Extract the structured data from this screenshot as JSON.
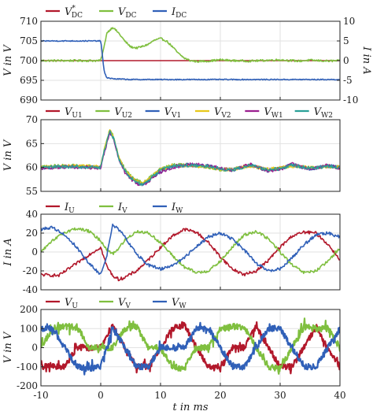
{
  "chart_data": [
    {
      "type": "line",
      "panel": "dc",
      "legend": [
        {
          "name": "V*DC",
          "label_main": "V",
          "label_sup": "*",
          "label_sub": "DC",
          "color": "#b2182b"
        },
        {
          "name": "VDC",
          "label_main": "V",
          "label_sup": "",
          "label_sub": "DC",
          "color": "#7fbf3f"
        },
        {
          "name": "IDC",
          "label_main": "I",
          "label_sup": "",
          "label_sub": "DC",
          "color": "#3060b8"
        }
      ],
      "ylabel": "V in V",
      "ylim": [
        690,
        710
      ],
      "yticks": [
        "690",
        "695",
        "700",
        "705",
        "710"
      ],
      "y2label": "I in A",
      "y2lim": [
        -10,
        10
      ],
      "y2ticks": [
        "-10",
        "-5",
        "0",
        "5",
        "10"
      ],
      "xlim": [
        -10,
        40
      ],
      "series": [
        {
          "name": "V*DC",
          "axis": "left",
          "x": [
            -10,
            40
          ],
          "values": [
            700,
            700
          ]
        },
        {
          "name": "VDC",
          "axis": "left",
          "x": [
            -10,
            0,
            0.5,
            1,
            2,
            3,
            4,
            5,
            6,
            7,
            8,
            9,
            10,
            11,
            12,
            13,
            14,
            15,
            16,
            18,
            20,
            22,
            25,
            28,
            30,
            33,
            35,
            38,
            40
          ],
          "values": [
            700,
            700,
            703,
            707,
            708.5,
            707,
            705,
            703.5,
            703.2,
            703.6,
            704.2,
            705.2,
            705.6,
            705.0,
            703.5,
            701.8,
            700.6,
            700.0,
            699.8,
            699.9,
            700.2,
            700.0,
            699.9,
            700.1,
            700.2,
            699.9,
            700.1,
            699.9,
            700.0
          ]
        },
        {
          "name": "IDC",
          "axis": "right",
          "x": [
            -10,
            0,
            0.1,
            0.3,
            0.6,
            1,
            2,
            5,
            40
          ],
          "values": [
            5,
            5,
            4,
            1,
            -3,
            -4.3,
            -4.6,
            -4.8,
            -4.8
          ]
        }
      ]
    },
    {
      "type": "line",
      "panel": "capacitor",
      "legend": [
        {
          "name": "VU1",
          "label_main": "V",
          "label_sub": "U1",
          "color": "#b2182b"
        },
        {
          "name": "VU2",
          "label_main": "V",
          "label_sub": "U2",
          "color": "#7fbf3f"
        },
        {
          "name": "VV1",
          "label_main": "V",
          "label_sub": "V1",
          "color": "#3060b8"
        },
        {
          "name": "VV2",
          "label_main": "V",
          "label_sub": "V2",
          "color": "#e8c81a"
        },
        {
          "name": "VW1",
          "label_main": "V",
          "label_sub": "W1",
          "color": "#9b1f8f"
        },
        {
          "name": "VW2",
          "label_main": "V",
          "label_sub": "W2",
          "color": "#2aa198"
        }
      ],
      "ylabel": "V in V",
      "ylim": [
        55,
        70
      ],
      "yticks": [
        "55",
        "60",
        "65",
        "70"
      ],
      "xlim": [
        -10,
        40
      ],
      "series": [
        {
          "name": "VU1",
          "x": [
            -10,
            -5,
            0,
            0.5,
            1.5,
            2.2,
            3,
            4,
            5,
            6,
            7,
            8,
            10,
            12,
            15,
            18,
            20,
            22,
            25,
            28,
            30,
            32,
            35,
            38,
            40
          ],
          "values": [
            60,
            60.3,
            60,
            63,
            67.8,
            66,
            62,
            59.5,
            58,
            57,
            56.6,
            57.5,
            59.5,
            60.3,
            60.5,
            60.2,
            59.7,
            59.5,
            60.6,
            59.4,
            59.8,
            60.5,
            59.8,
            60.3,
            60
          ]
        },
        {
          "name": "VU2",
          "x": [
            -10,
            -5,
            0,
            0.5,
            1.5,
            2.2,
            3,
            4,
            5,
            6,
            7,
            8,
            10,
            12,
            15,
            18,
            20,
            22,
            25,
            28,
            30,
            32,
            35,
            38,
            40
          ],
          "values": [
            60.2,
            60.4,
            60.1,
            63.2,
            68,
            66.3,
            62.2,
            59.8,
            58.3,
            57.3,
            56.8,
            57.8,
            59.7,
            60.5,
            60.6,
            60.0,
            59.5,
            59.6,
            60.4,
            59.5,
            59.9,
            60.4,
            59.9,
            60.2,
            60.1
          ]
        },
        {
          "name": "VV1",
          "x": [
            -10,
            -5,
            0,
            0.5,
            1.5,
            2.2,
            3,
            4,
            5,
            6,
            7,
            8,
            10,
            12,
            15,
            18,
            20,
            22,
            25,
            28,
            30,
            32,
            35,
            38,
            40
          ],
          "values": [
            59.9,
            60.2,
            60,
            62.8,
            67.5,
            65.8,
            61.8,
            59.3,
            57.8,
            56.8,
            56.5,
            57.3,
            59.2,
            60.2,
            60.6,
            60.3,
            59.8,
            59.4,
            60.5,
            59.3,
            59.7,
            60.6,
            59.7,
            60.4,
            59.9
          ]
        },
        {
          "name": "VV2",
          "x": [
            -10,
            -5,
            0,
            0.5,
            1.5,
            2.2,
            3,
            4,
            5,
            6,
            7,
            8,
            10,
            12,
            15,
            18,
            20,
            22,
            25,
            28,
            30,
            32,
            35,
            38,
            40
          ],
          "values": [
            60.1,
            60.3,
            60.2,
            63.1,
            67.9,
            66.1,
            62.1,
            59.6,
            58.1,
            57.1,
            56.7,
            57.6,
            59.6,
            60.4,
            60.4,
            60.1,
            59.6,
            59.6,
            60.3,
            59.6,
            59.9,
            60.3,
            60.0,
            60.2,
            60.0
          ]
        },
        {
          "name": "VW1",
          "x": [
            -10,
            -5,
            0,
            0.5,
            1.5,
            2.2,
            3,
            4,
            5,
            6,
            7,
            8,
            10,
            12,
            15,
            18,
            20,
            22,
            25,
            28,
            30,
            32,
            35,
            38,
            40
          ],
          "values": [
            59.8,
            60.1,
            59.9,
            62.6,
            67.3,
            65.6,
            61.6,
            59.1,
            57.6,
            56.6,
            56.3,
            57.1,
            59.0,
            60.0,
            60.7,
            60.4,
            59.9,
            59.3,
            60.7,
            59.2,
            59.6,
            60.7,
            59.6,
            60.5,
            59.8
          ]
        },
        {
          "name": "VW2",
          "x": [
            -10,
            -5,
            0,
            0.5,
            1.5,
            2.2,
            3,
            4,
            5,
            6,
            7,
            8,
            10,
            12,
            15,
            18,
            20,
            22,
            25,
            28,
            30,
            32,
            35,
            38,
            40
          ],
          "values": [
            60.0,
            60.2,
            60.0,
            62.9,
            67.6,
            65.9,
            61.9,
            59.4,
            57.9,
            56.9,
            56.5,
            57.4,
            59.4,
            60.3,
            60.5,
            60.2,
            59.7,
            59.5,
            60.5,
            59.4,
            59.8,
            60.5,
            59.8,
            60.3,
            60.0
          ]
        }
      ]
    },
    {
      "type": "line",
      "panel": "currents",
      "legend": [
        {
          "name": "IU",
          "label_main": "I",
          "label_sub": "U",
          "color": "#b2182b"
        },
        {
          "name": "IV",
          "label_main": "I",
          "label_sub": "V",
          "color": "#7fbf3f"
        },
        {
          "name": "IW",
          "label_main": "I",
          "label_sub": "W",
          "color": "#3060b8"
        }
      ],
      "ylabel": "I in A",
      "ylim": [
        -40,
        40
      ],
      "yticks": [
        "-40",
        "-20",
        "0",
        "20",
        "40"
      ],
      "xlim": [
        -10,
        40
      ],
      "series": [
        {
          "name": "IU",
          "x": [
            -10,
            -7,
            -4,
            -2,
            0,
            1,
            2,
            3,
            4,
            6,
            8,
            10,
            12,
            14,
            16,
            18,
            20,
            22,
            24,
            26,
            28,
            30,
            32,
            34,
            36,
            38,
            40
          ],
          "values": [
            -24,
            -25,
            -12,
            -3,
            5,
            -15,
            -25,
            -29,
            -27,
            -20,
            -8,
            5,
            17,
            24,
            21,
            10,
            -5,
            -18,
            -24,
            -20,
            -9,
            5,
            17,
            21,
            20,
            8,
            -8
          ]
        },
        {
          "name": "IV",
          "x": [
            -10,
            -8,
            -6,
            -4,
            -2,
            0,
            1,
            2,
            3,
            4,
            6,
            8,
            10,
            12,
            14,
            16,
            18,
            20,
            22,
            24,
            26,
            28,
            30,
            32,
            34,
            36,
            38,
            40
          ],
          "values": [
            0,
            12,
            21,
            25,
            22,
            12,
            3,
            -2,
            4,
            12,
            22,
            20,
            10,
            -4,
            -16,
            -22,
            -20,
            -10,
            5,
            18,
            22,
            14,
            0,
            -14,
            -22,
            -20,
            -10,
            5
          ]
        },
        {
          "name": "IW",
          "x": [
            -10,
            -8,
            -6,
            -4,
            -2,
            0,
            1,
            2,
            3,
            4,
            6,
            8,
            10,
            12,
            14,
            16,
            18,
            20,
            22,
            24,
            26,
            28,
            30,
            32,
            34,
            36,
            38,
            40
          ],
          "values": [
            24,
            26,
            18,
            5,
            -12,
            -24,
            -4,
            28,
            24,
            16,
            -2,
            -14,
            -18,
            -14,
            -6,
            6,
            16,
            20,
            14,
            2,
            -12,
            -20,
            -18,
            -6,
            8,
            18,
            20,
            16
          ]
        }
      ]
    },
    {
      "type": "line",
      "panel": "phase-voltages",
      "legend": [
        {
          "name": "VU",
          "label_main": "V",
          "label_sub": "U",
          "color": "#b2182b"
        },
        {
          "name": "VV",
          "label_main": "V",
          "label_sub": "V",
          "color": "#7fbf3f"
        },
        {
          "name": "VW",
          "label_main": "V",
          "label_sub": "W",
          "color": "#3060b8"
        }
      ],
      "ylabel": "V in V",
      "ylim": [
        -200,
        200
      ],
      "yticks": [
        "-200",
        "-100",
        "0",
        "100",
        "200"
      ],
      "xlim": [
        -10,
        40
      ],
      "xticks": [
        "-10",
        "0",
        "10",
        "20",
        "30",
        "40"
      ],
      "xlabel": "t in ms",
      "series": [
        {
          "name": "VU",
          "x": [
            -10,
            -6,
            -4,
            -2,
            0,
            2,
            4,
            6,
            8,
            10,
            12,
            14,
            16,
            18,
            20,
            22,
            24,
            26,
            28,
            30,
            32,
            34,
            36,
            38,
            40
          ],
          "values": [
            -100,
            -100,
            0,
            0,
            0,
            120,
            0,
            -100,
            -100,
            0,
            100,
            120,
            0,
            -100,
            -110,
            0,
            0,
            110,
            0,
            -100,
            -100,
            0,
            110,
            0,
            -100
          ]
        },
        {
          "name": "VV",
          "x": [
            -10,
            -8,
            -6,
            -4,
            -2,
            0,
            2,
            4,
            6,
            8,
            10,
            12,
            14,
            16,
            18,
            20,
            22,
            24,
            26,
            28,
            30,
            32,
            34,
            36,
            38,
            40
          ],
          "values": [
            0,
            100,
            110,
            110,
            0,
            0,
            0,
            100,
            110,
            0,
            0,
            -100,
            -110,
            0,
            0,
            100,
            110,
            110,
            0,
            -100,
            -110,
            0,
            110,
            100,
            100,
            0
          ]
        },
        {
          "name": "VW",
          "x": [
            -10,
            -8,
            -6,
            -4,
            -2,
            0,
            2,
            4,
            6,
            8,
            10,
            12,
            14,
            16,
            18,
            20,
            22,
            24,
            26,
            28,
            30,
            32,
            34,
            36,
            38,
            40
          ],
          "values": [
            100,
            100,
            0,
            -100,
            -110,
            -100,
            100,
            0,
            -100,
            -100,
            0,
            0,
            0,
            100,
            100,
            0,
            -100,
            -100,
            0,
            100,
            100,
            0,
            -100,
            -100,
            0,
            100
          ]
        }
      ]
    }
  ]
}
